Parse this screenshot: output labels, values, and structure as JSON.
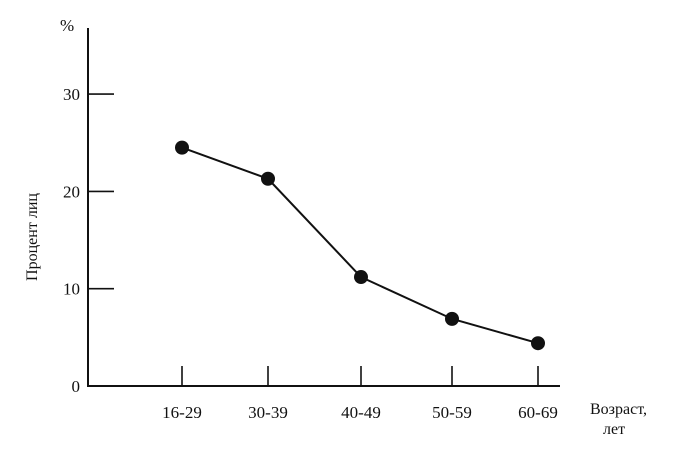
{
  "chart_data": {
    "type": "line",
    "title": "",
    "ylabel": "Процент лиц",
    "yunit": "%",
    "xlabel_line1": "Возраст,",
    "xlabel_line2": "лет",
    "categories": [
      "16-29",
      "30-39",
      "40-49",
      "50-59",
      "60-69"
    ],
    "values": [
      24.5,
      21.3,
      11.2,
      6.9,
      4.4
    ],
    "ylim": [
      0,
      36
    ],
    "yticks": [
      0,
      10,
      20,
      30
    ],
    "grid": false,
    "legend": "none",
    "colors": {
      "line": "#111111",
      "marker": "#111111"
    }
  }
}
